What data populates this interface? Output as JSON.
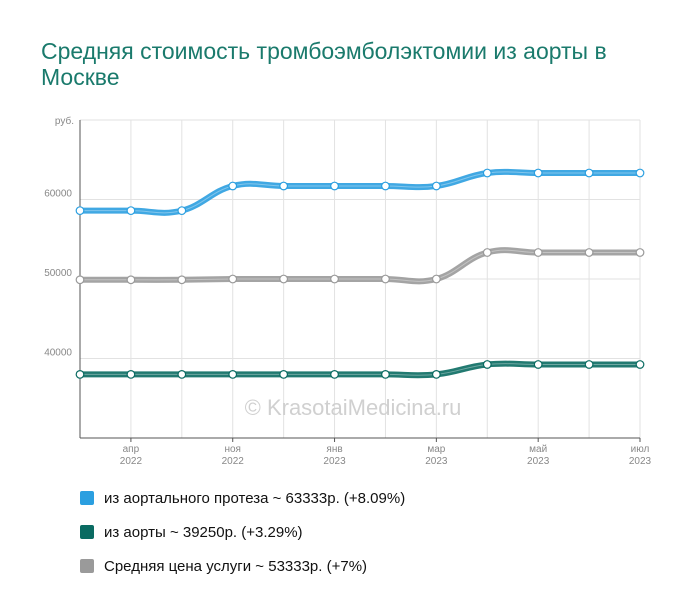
{
  "title": "Средняя стоимость тромбоэмболэктомии из аорты в Москве",
  "watermark": "© KrasotaiMedicina.ru",
  "colors": {
    "blue": "#2b9fe0",
    "teal": "#0a6b62",
    "gray": "#9a9a9a",
    "title": "#1a7a6c"
  },
  "chart_data": {
    "type": "line",
    "y_unit_label": "руб.",
    "ylim": [
      30000,
      70000
    ],
    "y_ticks": [
      40000,
      50000,
      60000
    ],
    "grid": true,
    "x_tick_labels": [
      {
        "month": "апр",
        "year": "2022"
      },
      {
        "month": "ноя",
        "year": "2022"
      },
      {
        "month": "янв",
        "year": "2023"
      },
      {
        "month": "мар",
        "year": "2023"
      },
      {
        "month": "май",
        "year": "2023"
      },
      {
        "month": "июл",
        "year": "2023"
      }
    ],
    "series": [
      {
        "name": "из аортального протеза ~ 63333р. (+8.09%)",
        "color": "#2b9fe0",
        "values": [
          58600,
          58600,
          58600,
          61700,
          61700,
          61700,
          61700,
          61700,
          63333,
          63333,
          63333,
          63333
        ]
      },
      {
        "name": "из аорты ~ 39250р. (+3.29%)",
        "color": "#0a6b62",
        "values": [
          38000,
          38000,
          38000,
          38000,
          38000,
          38000,
          38000,
          38000,
          39250,
          39250,
          39250,
          39250
        ]
      },
      {
        "name": "Средняя цена услуги ~ 53333р. (+7%)",
        "color": "#9a9a9a",
        "values": [
          49900,
          49900,
          49900,
          50000,
          50000,
          50000,
          50000,
          50000,
          53333,
          53333,
          53333,
          53333
        ]
      }
    ]
  }
}
